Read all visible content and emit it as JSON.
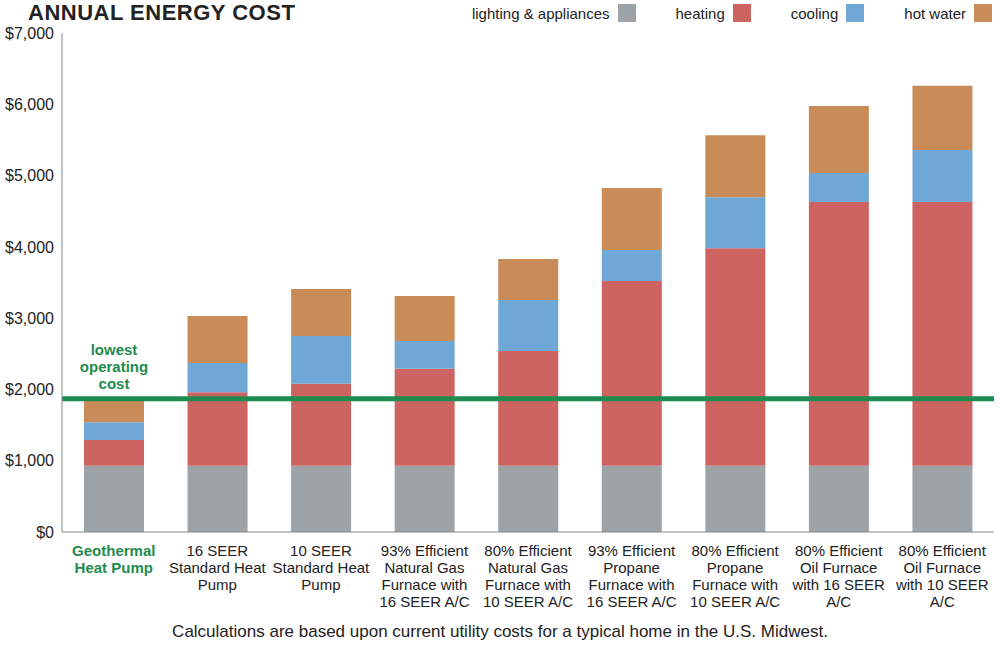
{
  "chart_data": {
    "type": "bar",
    "title": "ANNUAL ENERGY COST",
    "stacked": true,
    "grid": false,
    "legend": "top-right",
    "categories": [
      "Geothermal Heat Pump",
      "16 SEER Standard Heat Pump",
      "10 SEER Standard Heat Pump",
      "93% Efficient Natural Gas Furnace with 16 SEER A/C",
      "80% Efficient Natural Gas Furnace with 10 SEER A/C",
      "93% Efficient Propane Furnace with 16 SEER A/C",
      "80% Efficient Propane Furnace with 10 SEER A/C",
      "80% Efficient Oil Furnace with 16 SEER A/C",
      "80% Efficient Oil Furnace with 10 SEER A/C"
    ],
    "series": [
      {
        "name": "lighting & appliances",
        "color": "#9ea3a8",
        "values": [
          930,
          930,
          930,
          930,
          930,
          930,
          930,
          930,
          930
        ]
      },
      {
        "name": "heating",
        "color": "#cd6462",
        "values": [
          360,
          1030,
          1150,
          1360,
          1610,
          2590,
          3050,
          3700,
          3700
        ]
      },
      {
        "name": "cooling",
        "color": "#6fa8d6",
        "values": [
          250,
          410,
          670,
          390,
          715,
          435,
          715,
          405,
          730
        ]
      },
      {
        "name": "hot water",
        "color": "#c98b58",
        "values": [
          310,
          660,
          660,
          630,
          575,
          870,
          870,
          940,
          900
        ]
      }
    ],
    "ylim": [
      0,
      7000
    ],
    "yticks": [
      {
        "value": 0,
        "label": "$0"
      },
      {
        "value": 1000,
        "label": "$1,000"
      },
      {
        "value": 2000,
        "label": "$2,000"
      },
      {
        "value": 3000,
        "label": "$3,000"
      },
      {
        "value": 4000,
        "label": "$4,000"
      },
      {
        "value": 5000,
        "label": "$5,000"
      },
      {
        "value": 6000,
        "label": "$6,000"
      },
      {
        "value": 7000,
        "label": "$7,000"
      }
    ],
    "reference_line": {
      "value": 1870,
      "label": "lowest operating cost",
      "color": "#1e8c4e"
    },
    "footnote": "Calculations are based upon current utility costs for a typical home in the U.S. Midwest."
  }
}
